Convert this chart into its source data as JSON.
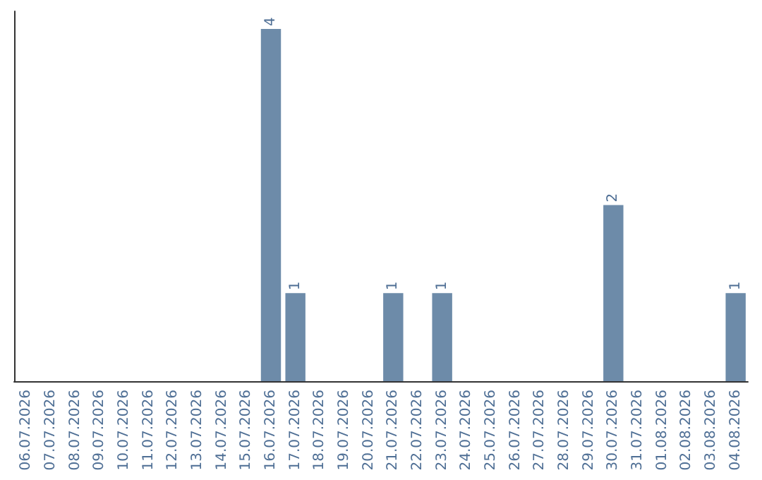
{
  "chart_data": {
    "type": "bar",
    "categories": [
      "06.07.2026",
      "07.07.2026",
      "08.07.2026",
      "09.07.2026",
      "10.07.2026",
      "11.07.2026",
      "12.07.2026",
      "13.07.2026",
      "14.07.2026",
      "15.07.2026",
      "16.07.2026",
      "17.07.2026",
      "18.07.2026",
      "19.07.2026",
      "20.07.2026",
      "21.07.2026",
      "22.07.2026",
      "23.07.2026",
      "24.07.2026",
      "25.07.2026",
      "26.07.2026",
      "27.07.2026",
      "28.07.2026",
      "29.07.2026",
      "30.07.2026",
      "31.07.2026",
      "01.08.2026",
      "02.08.2026",
      "03.08.2026",
      "04.08.2026"
    ],
    "values": [
      0,
      0,
      0,
      0,
      0,
      0,
      0,
      0,
      0,
      0,
      4,
      1,
      0,
      0,
      0,
      1,
      0,
      1,
      0,
      0,
      0,
      0,
      0,
      0,
      2,
      0,
      0,
      0,
      0,
      1
    ],
    "value_labels": [
      null,
      null,
      null,
      null,
      null,
      null,
      null,
      null,
      null,
      null,
      "4",
      "1",
      null,
      null,
      null,
      "1",
      null,
      "1",
      null,
      null,
      null,
      null,
      null,
      null,
      "2",
      null,
      null,
      null,
      null,
      "1"
    ],
    "color": "#6d8ba9",
    "tick_labels": "x"
  }
}
